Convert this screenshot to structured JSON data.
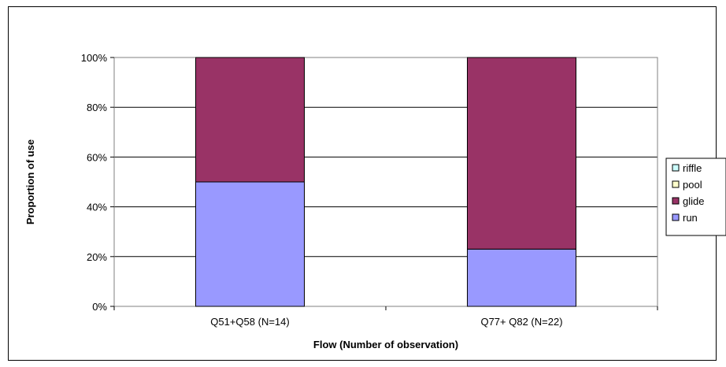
{
  "chart_data": {
    "type": "bar",
    "stacked": true,
    "percent": true,
    "title": "",
    "xlabel": "Flow (Number of observation)",
    "ylabel": "Proportion of use",
    "categories": [
      "Q51+Q58 (N=14)",
      "Q77+ Q82 (N=22)"
    ],
    "series": [
      {
        "name": "run",
        "values": [
          50,
          23
        ],
        "color": "#9999ff"
      },
      {
        "name": "glide",
        "values": [
          50,
          77
        ],
        "color": "#993366"
      },
      {
        "name": "pool",
        "values": [
          0,
          0
        ],
        "color": "#ffffcc"
      },
      {
        "name": "riffle",
        "values": [
          0,
          0
        ],
        "color": "#ccffff"
      }
    ],
    "legend_order": [
      "riffle",
      "pool",
      "glide",
      "run"
    ],
    "ylim": [
      0,
      100
    ],
    "yticks": [
      "0%",
      "20%",
      "40%",
      "60%",
      "80%",
      "100%"
    ],
    "grid": true,
    "legend_position": "right"
  }
}
